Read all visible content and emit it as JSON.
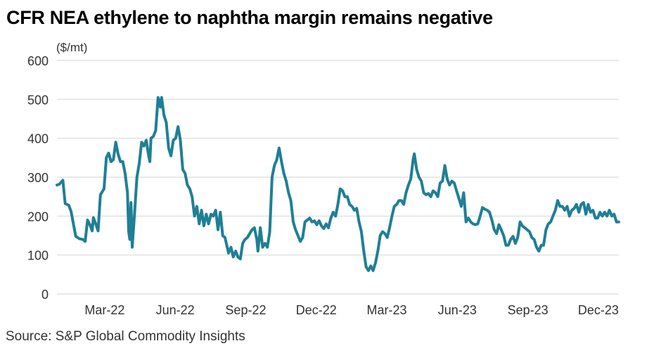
{
  "chart_data": {
    "type": "line",
    "title": "CFR NEA ethylene to naphtha margin remains negative",
    "ylabel": "($/mt)",
    "xlabel": "",
    "source": "Source: S&P Global Commodity Insights",
    "ylim": [
      0,
      600
    ],
    "yticks": [
      0,
      100,
      200,
      300,
      400,
      500,
      600
    ],
    "grid": true,
    "x_start": "Jan-22",
    "x_unit": "months since start of Jan-22",
    "xlim": [
      0,
      23.9
    ],
    "xticks": [
      {
        "label": "Mar-22",
        "month": 2
      },
      {
        "label": "Jun-22",
        "month": 5
      },
      {
        "label": "Sep-22",
        "month": 8
      },
      {
        "label": "Dec-22",
        "month": 11
      },
      {
        "label": "Mar-23",
        "month": 14
      },
      {
        "label": "Jun-23",
        "month": 17
      },
      {
        "label": "Sep-23",
        "month": 20
      },
      {
        "label": "Dec-23",
        "month": 23
      }
    ],
    "line_color": "#1f7f96",
    "series": [
      {
        "name": "CFR NEA ethylene to naphtha margin",
        "points": [
          [
            0.0,
            280
          ],
          [
            0.1,
            282
          ],
          [
            0.25,
            292
          ],
          [
            0.35,
            232
          ],
          [
            0.5,
            228
          ],
          [
            0.6,
            212
          ],
          [
            0.7,
            180
          ],
          [
            0.8,
            148
          ],
          [
            0.95,
            142
          ],
          [
            1.1,
            140
          ],
          [
            1.2,
            135
          ],
          [
            1.3,
            190
          ],
          [
            1.4,
            178
          ],
          [
            1.5,
            162
          ],
          [
            1.55,
            196
          ],
          [
            1.65,
            180
          ],
          [
            1.75,
            162
          ],
          [
            1.85,
            255
          ],
          [
            2.0,
            270
          ],
          [
            2.1,
            350
          ],
          [
            2.2,
            362
          ],
          [
            2.3,
            340
          ],
          [
            2.4,
            345
          ],
          [
            2.5,
            390
          ],
          [
            2.6,
            360
          ],
          [
            2.7,
            340
          ],
          [
            2.8,
            340
          ],
          [
            2.9,
            310
          ],
          [
            3.0,
            260
          ],
          [
            3.05,
            160
          ],
          [
            3.1,
            140
          ],
          [
            3.15,
            235
          ],
          [
            3.2,
            120
          ],
          [
            3.3,
            205
          ],
          [
            3.4,
            300
          ],
          [
            3.5,
            335
          ],
          [
            3.6,
            390
          ],
          [
            3.7,
            380
          ],
          [
            3.8,
            395
          ],
          [
            3.9,
            355
          ],
          [
            3.95,
            340
          ],
          [
            4.0,
            400
          ],
          [
            4.1,
            405
          ],
          [
            4.2,
            420
          ],
          [
            4.3,
            505
          ],
          [
            4.4,
            480
          ],
          [
            4.45,
            505
          ],
          [
            4.55,
            460
          ],
          [
            4.65,
            440
          ],
          [
            4.75,
            375
          ],
          [
            4.85,
            355
          ],
          [
            4.95,
            395
          ],
          [
            5.05,
            400
          ],
          [
            5.15,
            430
          ],
          [
            5.25,
            395
          ],
          [
            5.35,
            320
          ],
          [
            5.45,
            310
          ],
          [
            5.55,
            280
          ],
          [
            5.65,
            270
          ],
          [
            5.75,
            250
          ],
          [
            5.85,
            200
          ],
          [
            5.95,
            225
          ],
          [
            6.05,
            180
          ],
          [
            6.15,
            215
          ],
          [
            6.25,
            175
          ],
          [
            6.35,
            205
          ],
          [
            6.45,
            180
          ],
          [
            6.55,
            205
          ],
          [
            6.65,
            200
          ],
          [
            6.75,
            215
          ],
          [
            6.85,
            165
          ],
          [
            6.95,
            210
          ],
          [
            7.05,
            150
          ],
          [
            7.15,
            145
          ],
          [
            7.3,
            105
          ],
          [
            7.4,
            120
          ],
          [
            7.5,
            95
          ],
          [
            7.6,
            110
          ],
          [
            7.7,
            95
          ],
          [
            7.8,
            90
          ],
          [
            7.9,
            130
          ],
          [
            8.0,
            140
          ],
          [
            8.1,
            145
          ],
          [
            8.2,
            155
          ],
          [
            8.3,
            165
          ],
          [
            8.4,
            170
          ],
          [
            8.5,
            140
          ],
          [
            8.55,
            110
          ],
          [
            8.65,
            170
          ],
          [
            8.75,
            120
          ],
          [
            8.85,
            130
          ],
          [
            8.95,
            120
          ],
          [
            9.05,
            160
          ],
          [
            9.15,
            300
          ],
          [
            9.25,
            330
          ],
          [
            9.35,
            345
          ],
          [
            9.45,
            375
          ],
          [
            9.55,
            340
          ],
          [
            9.65,
            310
          ],
          [
            9.75,
            290
          ],
          [
            9.85,
            260
          ],
          [
            9.95,
            240
          ],
          [
            10.05,
            185
          ],
          [
            10.15,
            165
          ],
          [
            10.25,
            150
          ],
          [
            10.35,
            135
          ],
          [
            10.45,
            145
          ],
          [
            10.55,
            185
          ],
          [
            10.65,
            190
          ],
          [
            10.75,
            195
          ],
          [
            10.85,
            185
          ],
          [
            10.95,
            188
          ],
          [
            11.05,
            178
          ],
          [
            11.15,
            188
          ],
          [
            11.25,
            175
          ],
          [
            11.35,
            168
          ],
          [
            11.45,
            180
          ],
          [
            11.55,
            170
          ],
          [
            11.65,
            195
          ],
          [
            11.75,
            210
          ],
          [
            11.85,
            200
          ],
          [
            11.95,
            230
          ],
          [
            12.05,
            270
          ],
          [
            12.15,
            265
          ],
          [
            12.25,
            250
          ],
          [
            12.35,
            250
          ],
          [
            12.45,
            230
          ],
          [
            12.55,
            225
          ],
          [
            12.65,
            215
          ],
          [
            12.75,
            220
          ],
          [
            12.85,
            185
          ],
          [
            12.95,
            160
          ],
          [
            13.05,
            110
          ],
          [
            13.15,
            70
          ],
          [
            13.25,
            60
          ],
          [
            13.35,
            72
          ],
          [
            13.45,
            60
          ],
          [
            13.55,
            80
          ],
          [
            13.65,
            110
          ],
          [
            13.75,
            150
          ],
          [
            13.85,
            160
          ],
          [
            13.95,
            155
          ],
          [
            14.05,
            145
          ],
          [
            14.15,
            170
          ],
          [
            14.25,
            200
          ],
          [
            14.35,
            225
          ],
          [
            14.45,
            230
          ],
          [
            14.55,
            240
          ],
          [
            14.65,
            240
          ],
          [
            14.75,
            230
          ],
          [
            14.85,
            260
          ],
          [
            14.95,
            280
          ],
          [
            15.05,
            295
          ],
          [
            15.15,
            345
          ],
          [
            15.2,
            360
          ],
          [
            15.3,
            320
          ],
          [
            15.4,
            300
          ],
          [
            15.5,
            290
          ],
          [
            15.6,
            260
          ],
          [
            15.7,
            255
          ],
          [
            15.8,
            258
          ],
          [
            15.9,
            250
          ],
          [
            16.0,
            265
          ],
          [
            16.1,
            260
          ],
          [
            16.2,
            250
          ],
          [
            16.3,
            285
          ],
          [
            16.4,
            290
          ],
          [
            16.5,
            330
          ],
          [
            16.6,
            295
          ],
          [
            16.7,
            280
          ],
          [
            16.8,
            290
          ],
          [
            16.9,
            285
          ],
          [
            17.0,
            265
          ],
          [
            17.1,
            245
          ],
          [
            17.2,
            225
          ],
          [
            17.3,
            260
          ],
          [
            17.4,
            185
          ],
          [
            17.5,
            195
          ],
          [
            17.6,
            185
          ],
          [
            17.7,
            180
          ],
          [
            17.8,
            178
          ],
          [
            17.9,
            180
          ],
          [
            18.0,
            200
          ],
          [
            18.1,
            222
          ],
          [
            18.2,
            218
          ],
          [
            18.3,
            215
          ],
          [
            18.4,
            210
          ],
          [
            18.5,
            190
          ],
          [
            18.6,
            165
          ],
          [
            18.7,
            155
          ],
          [
            18.8,
            178
          ],
          [
            18.9,
            165
          ],
          [
            19.0,
            150
          ],
          [
            19.1,
            125
          ],
          [
            19.2,
            125
          ],
          [
            19.3,
            140
          ],
          [
            19.4,
            148
          ],
          [
            19.5,
            130
          ],
          [
            19.6,
            145
          ],
          [
            19.7,
            185
          ],
          [
            19.8,
            175
          ],
          [
            19.9,
            170
          ],
          [
            20.0,
            165
          ],
          [
            20.1,
            160
          ],
          [
            20.2,
            145
          ],
          [
            20.3,
            140
          ],
          [
            20.4,
            120
          ],
          [
            20.5,
            110
          ],
          [
            20.6,
            125
          ],
          [
            20.7,
            125
          ],
          [
            20.8,
            165
          ],
          [
            20.9,
            180
          ],
          [
            21.0,
            185
          ],
          [
            21.1,
            200
          ],
          [
            21.2,
            215
          ],
          [
            21.3,
            240
          ],
          [
            21.4,
            225
          ],
          [
            21.5,
            225
          ],
          [
            21.6,
            215
          ],
          [
            21.7,
            225
          ],
          [
            21.8,
            200
          ],
          [
            21.9,
            215
          ],
          [
            22.0,
            220
          ],
          [
            22.1,
            230
          ],
          [
            22.2,
            210
          ],
          [
            22.3,
            230
          ],
          [
            22.4,
            235
          ],
          [
            22.5,
            205
          ],
          [
            22.6,
            230
          ],
          [
            22.7,
            210
          ],
          [
            22.8,
            215
          ],
          [
            22.9,
            195
          ],
          [
            23.0,
            195
          ],
          [
            23.1,
            210
          ],
          [
            23.2,
            200
          ],
          [
            23.3,
            210
          ],
          [
            23.4,
            200
          ],
          [
            23.5,
            215
          ],
          [
            23.6,
            200
          ],
          [
            23.7,
            205
          ],
          [
            23.8,
            185
          ],
          [
            23.9,
            185
          ]
        ]
      }
    ]
  }
}
